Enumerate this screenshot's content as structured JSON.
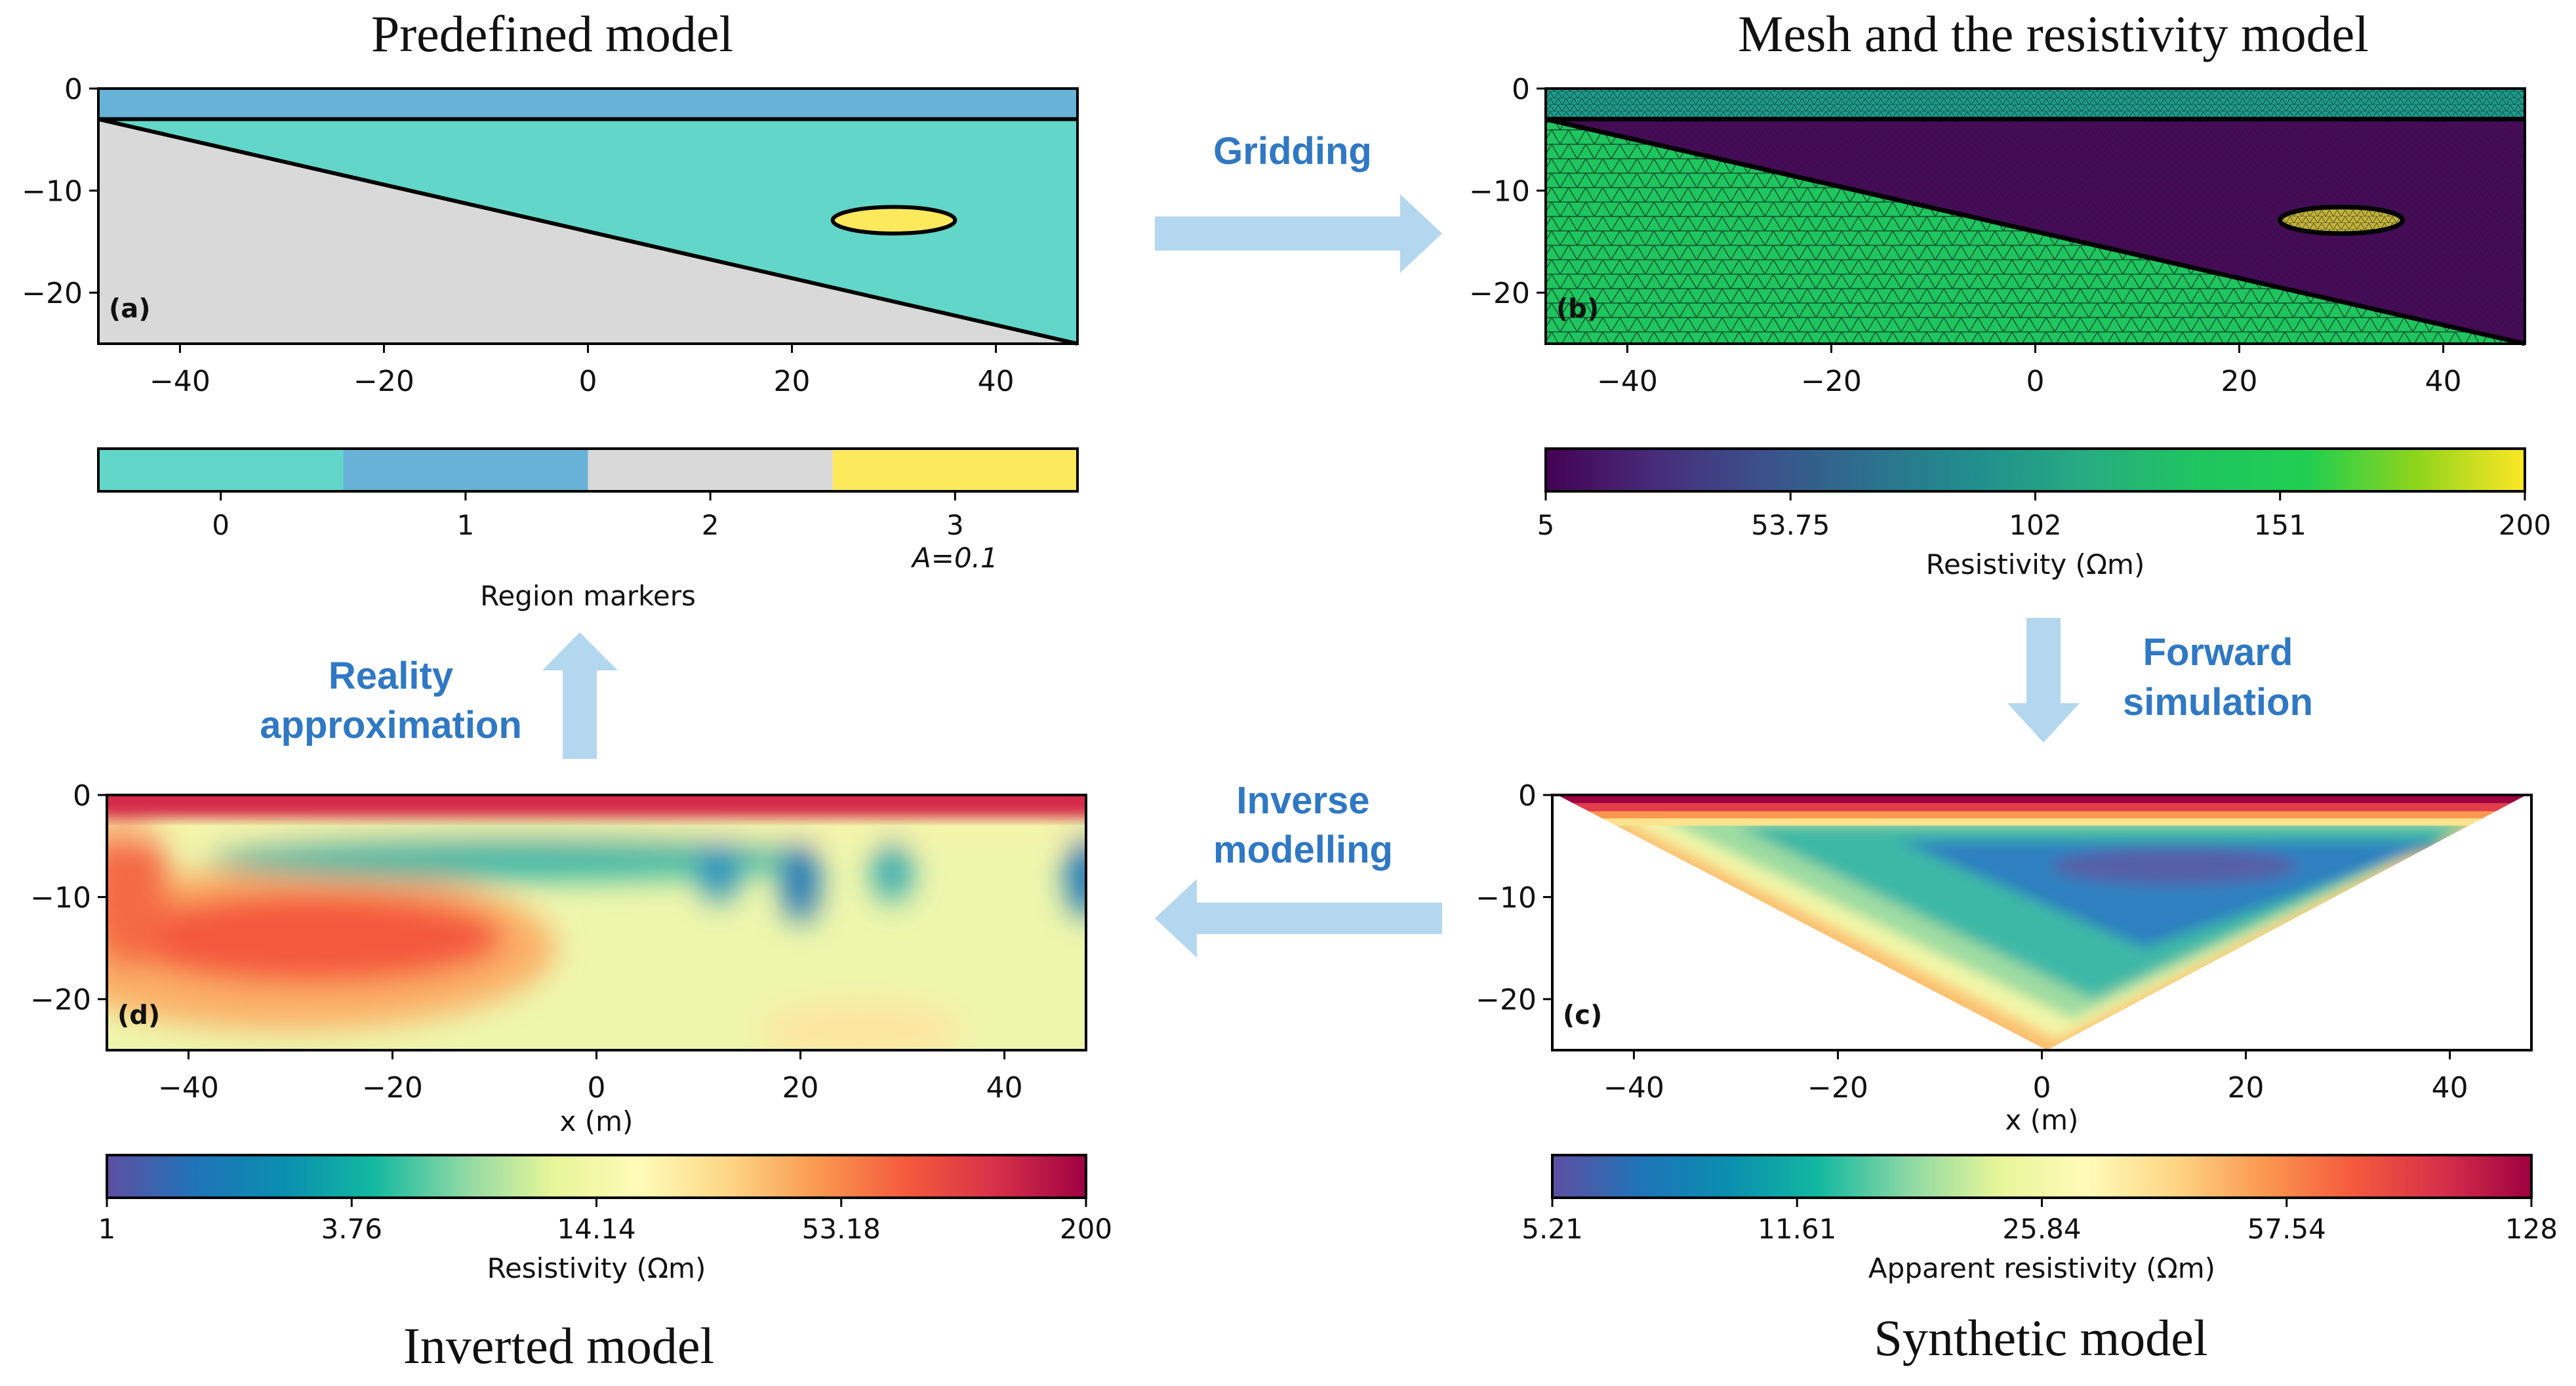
{
  "panels": {
    "a": {
      "title": "Predefined model",
      "label": "(a)",
      "xticks": [
        -40,
        -20,
        0,
        20,
        40
      ],
      "yticks": [
        0,
        -10,
        -20
      ],
      "colorbar": {
        "type": "discrete",
        "ticks": [
          "0",
          "1",
          "2",
          "3"
        ],
        "note": "A=0.1",
        "label": "Region markers",
        "colors": [
          "#62d6c8",
          "#67b2d6",
          "#d9d9d9",
          "#fde95c"
        ]
      }
    },
    "b": {
      "title": "Mesh and the resistivity model",
      "label": "(b)",
      "xticks": [
        -40,
        -20,
        0,
        20,
        40
      ],
      "yticks": [
        0,
        -10,
        -20
      ],
      "colorbar": {
        "type": "continuous",
        "ticks": [
          "5",
          "53.75",
          "102",
          "151",
          "200"
        ],
        "label": "Resistivity (Ωm)",
        "colors": [
          "#440154",
          "#472c7a",
          "#3b518b",
          "#2c718e",
          "#21908d",
          "#27ad81",
          "#1fc55f",
          "#1fce50",
          "#8fd41c",
          "#fde725"
        ]
      }
    },
    "c": {
      "title": "Synthetic model",
      "label": "(c)",
      "xlabel": "x (m)",
      "xticks": [
        -40,
        -20,
        0,
        20,
        40
      ],
      "yticks": [
        0,
        -10,
        -20
      ],
      "colorbar": {
        "type": "continuous",
        "ticks": [
          "5.21",
          "11.61",
          "25.84",
          "57.54",
          "128"
        ],
        "label": "Apparent resistivity (Ωm)",
        "colors": [
          "#5e4fa2",
          "#1f74b8",
          "#0a8fb0",
          "#13b9a0",
          "#8cd8a4",
          "#e6f598",
          "#fffbb8",
          "#fdd584",
          "#fb9850",
          "#f4593d",
          "#d7304a",
          "#9e0142"
        ]
      }
    },
    "d": {
      "title": "Inverted model",
      "label": "(d)",
      "xlabel": "x (m)",
      "xticks": [
        -40,
        -20,
        0,
        20,
        40
      ],
      "yticks": [
        0,
        -10,
        -20
      ],
      "colorbar": {
        "type": "continuous",
        "ticks": [
          "1",
          "3.76",
          "14.14",
          "53.18",
          "200"
        ],
        "label": "Resistivity (Ωm)",
        "colors": [
          "#5e4fa2",
          "#1f74b8",
          "#0a8fb0",
          "#13b9a0",
          "#8cd8a4",
          "#e6f598",
          "#fffbb8",
          "#fdd584",
          "#fb9850",
          "#f4593d",
          "#d7304a",
          "#9e0142"
        ]
      }
    }
  },
  "steps": {
    "gridding": [
      "Gridding"
    ],
    "forward": [
      "Forward",
      "simulation"
    ],
    "inverse": [
      "Inverse",
      "modelling"
    ],
    "reality": [
      "Reality",
      "approximation"
    ]
  },
  "colors": {
    "step_text": "#2f78c4",
    "arrow": "#b3d7ef"
  }
}
